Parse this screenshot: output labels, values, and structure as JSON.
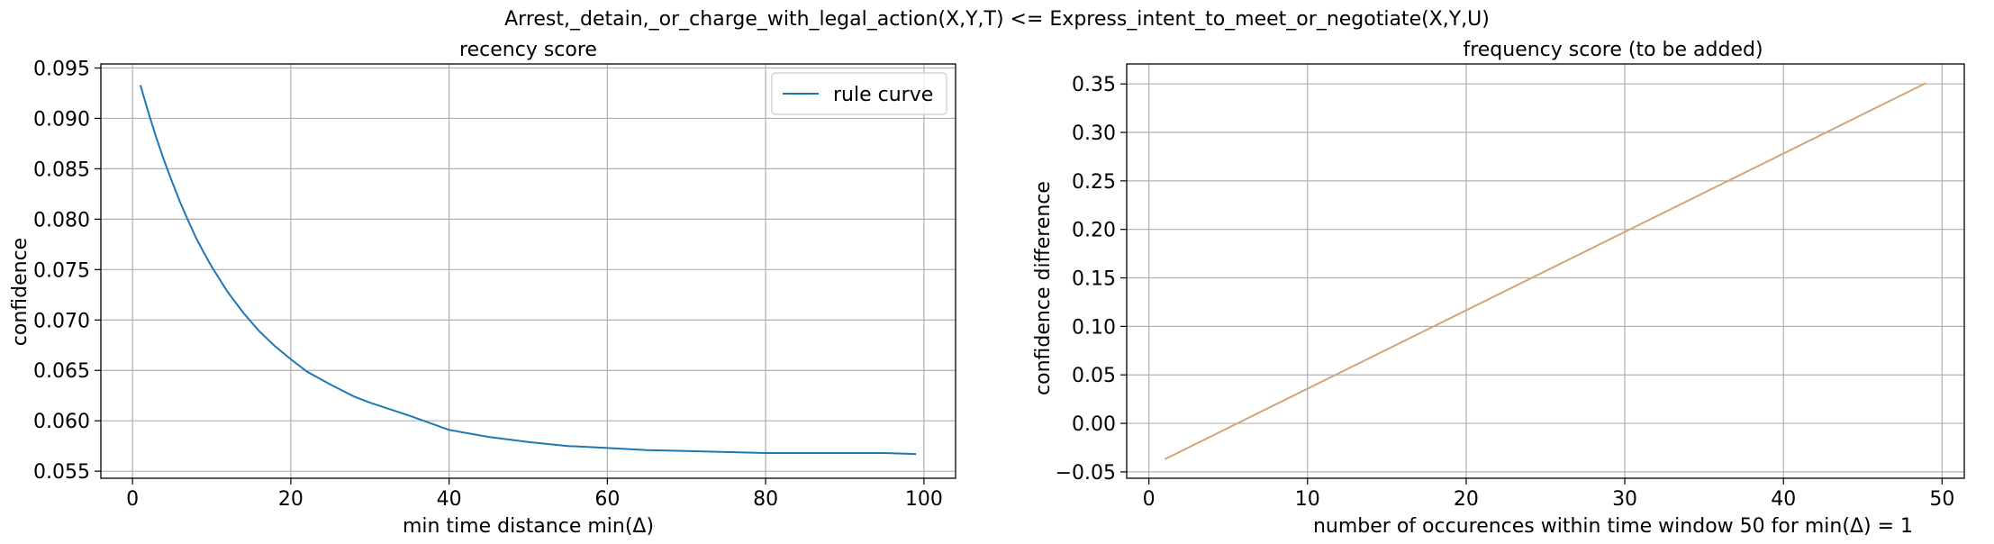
{
  "figure": {
    "suptitle": "Arrest,_detain,_or_charge_with_legal_action(X,Y,T) <= Express_intent_to_meet_or_negotiate(X,Y,U)"
  },
  "chart_data": [
    {
      "type": "line",
      "title": "recency score",
      "xlabel": "min time distance min(Δ)",
      "ylabel": "confidence",
      "xlim": [
        -4,
        104
      ],
      "ylim": [
        0.0543,
        0.0954
      ],
      "xticks": [
        0,
        20,
        40,
        60,
        80,
        100
      ],
      "yticks": [
        0.055,
        0.06,
        0.065,
        0.07,
        0.075,
        0.08,
        0.085,
        0.09,
        0.095
      ],
      "xtick_labels": [
        "0",
        "20",
        "40",
        "60",
        "80",
        "100"
      ],
      "ytick_labels": [
        "0.055",
        "0.060",
        "0.065",
        "0.070",
        "0.075",
        "0.080",
        "0.085",
        "0.090",
        "0.095"
      ],
      "grid": true,
      "legend": {
        "placement": "top-right",
        "entries": [
          "rule curve"
        ]
      },
      "series": [
        {
          "name": "rule curve",
          "color": "#1f77b4",
          "x": [
            1,
            2,
            3,
            4,
            5,
            6,
            7,
            8,
            9,
            10,
            12,
            14,
            16,
            18,
            20,
            22,
            25,
            28,
            30,
            35,
            40,
            45,
            50,
            55,
            60,
            65,
            70,
            75,
            80,
            85,
            90,
            95,
            99
          ],
          "y": [
            0.0933,
            0.0906,
            0.0881,
            0.0858,
            0.0837,
            0.0817,
            0.0799,
            0.0782,
            0.0767,
            0.0753,
            0.0728,
            0.0707,
            0.0689,
            0.0674,
            0.0661,
            0.0649,
            0.0636,
            0.0624,
            0.0618,
            0.0605,
            0.0591,
            0.0584,
            0.0579,
            0.0575,
            0.0573,
            0.0571,
            0.057,
            0.0569,
            0.0568,
            0.0568,
            0.0568,
            0.0568,
            0.0567
          ]
        }
      ]
    },
    {
      "type": "line",
      "title": "frequency score (to be added)",
      "xlabel": "number of occurences within time window 50 for min(Δ) = 1",
      "ylabel": "confidence difference",
      "xlim": [
        -1.4,
        51.4
      ],
      "ylim": [
        -0.0566,
        0.3706
      ],
      "xticks": [
        0,
        10,
        20,
        30,
        40,
        50
      ],
      "yticks": [
        -0.05,
        0.0,
        0.05,
        0.1,
        0.15,
        0.2,
        0.25,
        0.3,
        0.35
      ],
      "xtick_labels": [
        "0",
        "10",
        "20",
        "30",
        "40",
        "50"
      ],
      "ytick_labels": [
        "−0.05",
        "0.00",
        "0.05",
        "0.10",
        "0.15",
        "0.20",
        "0.25",
        "0.30",
        "0.35"
      ],
      "grid": true,
      "series": [
        {
          "color": "#d2a679",
          "x": [
            1,
            49
          ],
          "y": [
            -0.037,
            0.351
          ]
        }
      ]
    }
  ]
}
